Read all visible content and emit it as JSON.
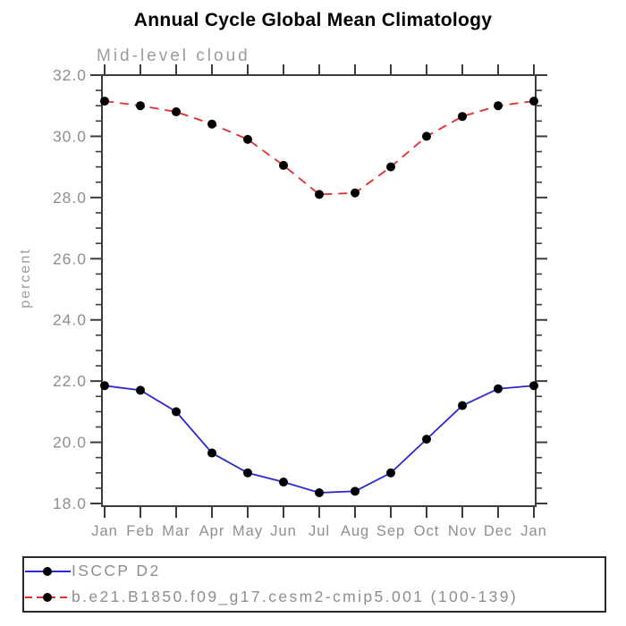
{
  "chart_data": {
    "type": "line",
    "title": "Annual Cycle Global Mean Climatology",
    "subtitle": "Mid-level cloud",
    "ylabel": "percent",
    "xlabel": "",
    "categories": [
      "Jan",
      "Feb",
      "Mar",
      "Apr",
      "May",
      "Jun",
      "Jul",
      "Aug",
      "Sep",
      "Oct",
      "Nov",
      "Dec",
      "Jan"
    ],
    "series": [
      {
        "name": "ISCCP D2",
        "color": "#2a2ad0",
        "line_style": "solid",
        "marker": "black-circle",
        "values": [
          21.85,
          21.7,
          21.0,
          19.65,
          19.0,
          18.7,
          18.35,
          18.4,
          19.0,
          20.1,
          21.2,
          21.75,
          21.85
        ]
      },
      {
        "name": "b.e21.B1850.f09_g17.cesm2-cmip5.001 (100-139)",
        "color": "#e62b2b",
        "line_style": "dashed",
        "marker": "black-circle",
        "values": [
          31.15,
          31.0,
          30.8,
          30.4,
          29.9,
          29.05,
          28.1,
          28.15,
          29.0,
          30.0,
          30.65,
          31.0,
          31.15
        ]
      }
    ],
    "ylim": [
      18.0,
      32.0
    ],
    "ytick_step": 2.0,
    "ytick_minor_step": 0.5,
    "ytick_labels": [
      "18.0",
      "20.0",
      "22.0",
      "24.0",
      "26.0",
      "28.0",
      "30.0",
      "32.0"
    ],
    "grid": false,
    "legend_position": "bottom-left",
    "axis_label_color": "#8f8f8f",
    "frame_color": "#3c3c3c",
    "marker_color": "#000000"
  }
}
